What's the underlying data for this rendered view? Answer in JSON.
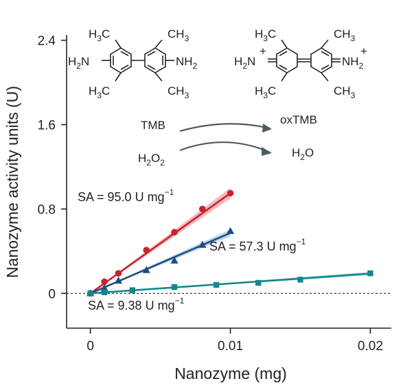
{
  "chart_data": {
    "type": "scatter",
    "xlabel": "Nanozyme (mg)",
    "ylabel": "Nanozyme activity units (U)",
    "xlim": [
      -0.0017,
      0.0215
    ],
    "ylim": [
      -0.33,
      2.45
    ],
    "x_ticks": [
      {
        "value": 0,
        "label": "0"
      },
      {
        "value": 0.01,
        "label": "0.01"
      },
      {
        "value": 0.02,
        "label": "0.02"
      }
    ],
    "y_ticks": [
      {
        "value": 0,
        "label": "0"
      },
      {
        "value": 0.8,
        "label": "0.8"
      },
      {
        "value": 1.6,
        "label": "1.6"
      },
      {
        "value": 2.4,
        "label": "2.4"
      }
    ],
    "zero_line": "dashed",
    "series": [
      {
        "marker": "circle",
        "color": "#c8232c",
        "band_color": "#f2a3a8",
        "slope": 95.0,
        "x_end": 0.01,
        "label": "SA = 95.0 U mg",
        "label_sup": "−1",
        "points": [
          {
            "x": 0,
            "y": 0
          },
          {
            "x": 0.001,
            "y": 0.11
          },
          {
            "x": 0.002,
            "y": 0.19
          },
          {
            "x": 0.004,
            "y": 0.41
          },
          {
            "x": 0.006,
            "y": 0.58
          },
          {
            "x": 0.008,
            "y": 0.8
          },
          {
            "x": 0.01,
            "y": 0.95
          }
        ]
      },
      {
        "marker": "triangle",
        "color": "#1c4e80",
        "band_color": "#a9c8e8",
        "slope": 57.3,
        "x_end": 0.01,
        "label": "SA = 57.3 U mg",
        "label_sup": "−1",
        "points": [
          {
            "x": 0,
            "y": 0
          },
          {
            "x": 0.001,
            "y": 0.05
          },
          {
            "x": 0.002,
            "y": 0.12
          },
          {
            "x": 0.004,
            "y": 0.22
          },
          {
            "x": 0.006,
            "y": 0.31
          },
          {
            "x": 0.008,
            "y": 0.46
          },
          {
            "x": 0.01,
            "y": 0.59
          }
        ]
      },
      {
        "marker": "square",
        "color": "#14868c",
        "band_color": "#9fd6d6",
        "slope": 9.38,
        "x_end": 0.02,
        "label": "SA = 9.38 U mg",
        "label_sup": "−1",
        "points": [
          {
            "x": 0,
            "y": 0
          },
          {
            "x": 0.001,
            "y": 0.01
          },
          {
            "x": 0.003,
            "y": 0.03
          },
          {
            "x": 0.006,
            "y": 0.06
          },
          {
            "x": 0.009,
            "y": 0.08
          },
          {
            "x": 0.012,
            "y": 0.1
          },
          {
            "x": 0.015,
            "y": 0.13
          },
          {
            "x": 0.02,
            "y": 0.19
          }
        ]
      }
    ]
  },
  "reaction": {
    "reactant1": "TMB",
    "reactant2": "H",
    "reactant2_sub": "2",
    "reactant2_mid": "O",
    "reactant2_sub2": "2",
    "product1": "oxTMB",
    "product2": "H",
    "product2_sub": "2",
    "product2_end": "O"
  },
  "structures": {
    "methyl": "H",
    "methyl_sub": "3",
    "methyl_c": "C",
    "ch": "CH",
    "ch_sub": "3",
    "amine_left": "H",
    "amine_sub": "2",
    "amine_n": "N",
    "amine_right": "NH",
    "amine_right_sub": "2",
    "plus": "+"
  }
}
